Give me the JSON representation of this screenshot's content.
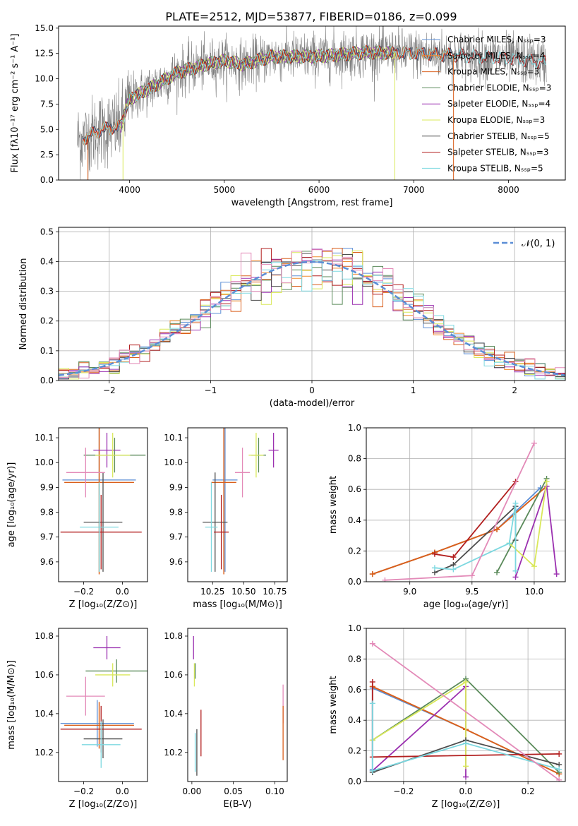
{
  "title": "PLATE=2512, MJD=53877, FIBERID=0186, z=0.099",
  "colors": {
    "c1": "#5b8ed6",
    "c2": "#ef8a2d",
    "c3": "#d95f1c",
    "c4": "#5a8a5a",
    "c5": "#9b30b0",
    "c6": "#d9e85a",
    "c7": "#4d4d4d",
    "c8": "#b21f1f",
    "c9": "#7dd8e0",
    "c10": "#e38ab8",
    "normal": "#5b8ed6",
    "spec": "#7f7f7f"
  },
  "legend_spectrum": [
    "Chabrier MILES, Nₛₛₚ=3",
    "Salpeter MILES, Nₛₛₚ=4",
    "Kroupa MILES, Nₛₛₚ=3",
    "Chabrier ELODIE, Nₛₛₚ=3",
    "Salpeter ELODIE, Nₛₛₚ=4",
    "Kroupa ELODIE, Nₛₛₚ=3",
    "Chabrier STELIB, Nₛₛₚ=5",
    "Salpeter STELIB, Nₛₛₚ=3",
    "Kroupa STELIB, Nₛₛₚ=5"
  ],
  "legend_normal": "𝒩(0, 1)",
  "chart_data": [
    {
      "type": "line",
      "xlabel": "wavelength [Angstrom, rest frame]",
      "ylabel": "Flux [fλ10⁻¹⁷ erg cm⁻² s⁻¹ A⁻¹]",
      "xlim": [
        3250,
        8600
      ],
      "ylim": [
        0,
        15.2
      ],
      "xticks": [
        4000,
        5000,
        6000,
        7000,
        8000
      ],
      "yticks": [
        0.0,
        2.5,
        5.0,
        7.5,
        10.0,
        12.5,
        15.0
      ],
      "continuum": [
        [
          3500,
          4.0
        ],
        [
          3700,
          5.0
        ],
        [
          3900,
          5.3
        ],
        [
          4000,
          8.0
        ],
        [
          4300,
          9.5
        ],
        [
          4500,
          10.6
        ],
        [
          4800,
          11.4
        ],
        [
          5000,
          11.8
        ],
        [
          5200,
          11.4
        ],
        [
          5500,
          12.2
        ],
        [
          6000,
          12.2
        ],
        [
          6500,
          12.6
        ],
        [
          7000,
          12.5
        ],
        [
          7500,
          12.3
        ],
        [
          8000,
          12.0
        ],
        [
          8400,
          11.6
        ]
      ],
      "series": [
        {
          "name": "data",
          "x_range": [
            3450,
            8400
          ],
          "noise": 1.2
        },
        {
          "name": "Chabrier MILES, Nₛₛₚ=3",
          "x_range": [
            3500,
            7400
          ]
        },
        {
          "name": "Salpeter MILES, Nₛₛₚ=4",
          "x_range": [
            3500,
            7400
          ]
        },
        {
          "name": "Kroupa MILES, Nₛₛₚ=3",
          "x_range": [
            3500,
            7400
          ]
        },
        {
          "name": "Chabrier ELODIE, Nₛₛₚ=3",
          "x_range": [
            3900,
            6800
          ]
        },
        {
          "name": "Salpeter ELODIE, Nₛₛₚ=4",
          "x_range": [
            3900,
            6800
          ]
        },
        {
          "name": "Kroupa ELODIE, Nₛₛₚ=3",
          "x_range": [
            3900,
            6800
          ]
        },
        {
          "name": "Chabrier STELIB, Nₛₛₚ=5",
          "x_range": [
            3500,
            8400
          ]
        },
        {
          "name": "Salpeter STELIB, Nₛₛₚ=3",
          "x_range": [
            3500,
            8400
          ]
        },
        {
          "name": "Kroupa STELIB, Nₛₛₚ=5",
          "x_range": [
            3500,
            8400
          ]
        }
      ]
    },
    {
      "type": "histogram",
      "xlabel": "(data-model)/error",
      "ylabel": "Normed distribution",
      "xlim": [
        -2.5,
        2.5
      ],
      "ylim": [
        0,
        0.515
      ],
      "xticks": [
        -2,
        -1,
        0,
        1,
        2
      ],
      "yticks": [
        0.0,
        0.1,
        0.2,
        0.3,
        0.4,
        0.5
      ],
      "bin_width": 0.1,
      "reference": "normal pdf, mean 0, sd 1"
    },
    {
      "type": "scatter",
      "xlabel": "Z [log₁₀(Z/Z⊙)]",
      "ylabel": "age  [log₁₀(age/yr)]",
      "xlim": [
        -0.33,
        0.13
      ],
      "ylim": [
        9.52,
        10.14
      ],
      "xticks": [
        -0.2,
        0.0
      ],
      "yticks": [
        9.6,
        9.7,
        9.8,
        9.9,
        10.0,
        10.1
      ],
      "points": [
        {
          "c": "c1",
          "x": -0.12,
          "y": 9.93,
          "xe": 0.19,
          "ye": 0.37
        },
        {
          "c": "c2",
          "x": -0.12,
          "y": 9.92,
          "xe": 0.18,
          "ye": 0.37
        },
        {
          "c": "c3",
          "x": -0.12,
          "y": 9.92,
          "xe": 0.18,
          "ye": 0.37
        },
        {
          "c": "c4",
          "x": -0.04,
          "y": 10.03,
          "xe": 0.16,
          "ye": 0.07
        },
        {
          "c": "c5",
          "x": -0.08,
          "y": 10.05,
          "xe": 0.07,
          "ye": 0.07
        },
        {
          "c": "c6",
          "x": -0.05,
          "y": 10.03,
          "xe": 0.09,
          "ye": 0.09
        },
        {
          "c": "c7",
          "x": -0.1,
          "y": 9.76,
          "xe": 0.1,
          "ye": 0.2
        },
        {
          "c": "c8",
          "x": -0.11,
          "y": 9.72,
          "xe": 0.21,
          "ye": 0.15
        },
        {
          "c": "c9",
          "x": -0.12,
          "y": 9.74,
          "xe": 0.1,
          "ye": 0.18
        },
        {
          "c": "c10",
          "x": -0.19,
          "y": 9.96,
          "xe": 0.1,
          "ye": 0.1
        }
      ]
    },
    {
      "type": "scatter",
      "xlabel": "mass [log₁₀(M/M⊙)]",
      "ylabel": "",
      "xlim": [
        10.05,
        10.85
      ],
      "ylim": [
        9.52,
        10.14
      ],
      "xticks": [
        10.25,
        10.5,
        10.75
      ],
      "yticks": [
        9.6,
        9.7,
        9.8,
        9.9,
        10.0,
        10.1
      ],
      "points": [
        {
          "c": "c1",
          "x": 10.35,
          "y": 9.93,
          "xe": 0.1,
          "ye": 0.37
        },
        {
          "c": "c2",
          "x": 10.34,
          "y": 9.92,
          "xe": 0.1,
          "ye": 0.37
        },
        {
          "c": "c3",
          "x": 10.34,
          "y": 9.92,
          "xe": 0.1,
          "ye": 0.37
        },
        {
          "c": "c4",
          "x": 10.62,
          "y": 10.03,
          "xe": 0.06,
          "ye": 0.07
        },
        {
          "c": "c5",
          "x": 10.74,
          "y": 10.05,
          "xe": 0.04,
          "ye": 0.07
        },
        {
          "c": "c6",
          "x": 10.6,
          "y": 10.03,
          "xe": 0.06,
          "ye": 0.09
        },
        {
          "c": "c7",
          "x": 10.27,
          "y": 9.76,
          "xe": 0.1,
          "ye": 0.2
        },
        {
          "c": "c8",
          "x": 10.32,
          "y": 9.72,
          "xe": 0.06,
          "ye": 0.15
        },
        {
          "c": "c9",
          "x": 10.24,
          "y": 9.74,
          "xe": 0.05,
          "ye": 0.18
        },
        {
          "c": "c10",
          "x": 10.49,
          "y": 9.96,
          "xe": 0.06,
          "ye": 0.1
        }
      ]
    },
    {
      "type": "line",
      "xlabel": "age  [log₁₀(age/yr)]",
      "ylabel": "mass weight",
      "xlim": [
        8.65,
        10.25
      ],
      "ylim": [
        0,
        1.0
      ],
      "xticks": [
        9.0,
        9.5,
        10.0
      ],
      "yticks": [
        0.0,
        0.2,
        0.4,
        0.6,
        0.8,
        1.0
      ],
      "series": [
        {
          "c": "c1",
          "x": [
            8.7,
            9.2,
            9.7,
            10.05
          ],
          "y": [
            0.05,
            0.19,
            0.34,
            0.61
          ]
        },
        {
          "c": "c2",
          "x": [
            8.7,
            9.2,
            9.7,
            10.1
          ],
          "y": [
            0.05,
            0.19,
            0.34,
            0.62
          ]
        },
        {
          "c": "c3",
          "x": [
            8.7,
            9.2,
            9.7,
            10.1
          ],
          "y": [
            0.05,
            0.19,
            0.34,
            0.62
          ]
        },
        {
          "c": "c4",
          "x": [
            9.7,
            10.1
          ],
          "y": [
            0.06,
            0.67
          ]
        },
        {
          "c": "c5",
          "x": [
            9.85,
            10.1,
            10.18
          ],
          "y": [
            0.03,
            0.62,
            0.05
          ]
        },
        {
          "c": "c6",
          "x": [
            9.8,
            10.0,
            10.1
          ],
          "y": [
            0.25,
            0.1,
            0.65
          ]
        },
        {
          "c": "c7",
          "x": [
            9.2,
            9.35,
            9.85,
            9.85
          ],
          "y": [
            0.06,
            0.11,
            0.49,
            0.27
          ]
        },
        {
          "c": "c8",
          "x": [
            9.2,
            9.35,
            9.85
          ],
          "y": [
            0.18,
            0.16,
            0.65
          ]
        },
        {
          "c": "c9",
          "x": [
            9.2,
            9.35,
            9.8,
            9.85,
            9.85
          ],
          "y": [
            0.09,
            0.08,
            0.25,
            0.51,
            0.07
          ]
        },
        {
          "c": "c10",
          "x": [
            8.8,
            9.5,
            10.0
          ],
          "y": [
            0.01,
            0.04,
            0.9
          ]
        }
      ]
    },
    {
      "type": "scatter",
      "xlabel": "Z [log₁₀(Z/Z⊙)]",
      "ylabel": "mass [log₁₀(M/M⊙)]",
      "xlim": [
        -0.33,
        0.13
      ],
      "ylim": [
        10.05,
        10.84
      ],
      "xticks": [
        -0.2,
        0.0
      ],
      "yticks": [
        10.2,
        10.4,
        10.6,
        10.8
      ],
      "points": [
        {
          "c": "c1",
          "x": -0.13,
          "y": 10.35,
          "xe": 0.19,
          "ye": 0.12
        },
        {
          "c": "c2",
          "x": -0.12,
          "y": 10.34,
          "xe": 0.18,
          "ye": 0.12
        },
        {
          "c": "c3",
          "x": -0.12,
          "y": 10.34,
          "xe": 0.18,
          "ye": 0.12
        },
        {
          "c": "c4",
          "x": -0.03,
          "y": 10.62,
          "xe": 0.16,
          "ye": 0.06
        },
        {
          "c": "c5",
          "x": -0.08,
          "y": 10.74,
          "xe": 0.07,
          "ye": 0.06
        },
        {
          "c": "c6",
          "x": -0.05,
          "y": 10.6,
          "xe": 0.09,
          "ye": 0.06
        },
        {
          "c": "c7",
          "x": -0.1,
          "y": 10.27,
          "xe": 0.1,
          "ye": 0.1
        },
        {
          "c": "c8",
          "x": -0.11,
          "y": 10.32,
          "xe": 0.21,
          "ye": 0.12
        },
        {
          "c": "c9",
          "x": -0.11,
          "y": 10.24,
          "xe": 0.1,
          "ye": 0.12
        },
        {
          "c": "c10",
          "x": -0.19,
          "y": 10.49,
          "xe": 0.1,
          "ye": 0.1
        }
      ]
    },
    {
      "type": "scatter",
      "xlabel": "E(B-V)",
      "ylabel": "",
      "xlim": [
        -0.005,
        0.115
      ],
      "ylim": [
        10.05,
        10.84
      ],
      "xticks": [
        0.0,
        0.05,
        0.1
      ],
      "yticks": [
        10.2,
        10.4,
        10.6,
        10.8
      ],
      "points": [
        {
          "c": "c5",
          "x": 0.002,
          "y": 10.74,
          "xe": 0.0,
          "ye": 0.06
        },
        {
          "c": "c6",
          "x": 0.003,
          "y": 10.6,
          "xe": 0.0,
          "ye": 0.06
        },
        {
          "c": "c4",
          "x": 0.004,
          "y": 10.62,
          "xe": 0.0,
          "ye": 0.04
        },
        {
          "c": "c7",
          "x": 0.006,
          "y": 10.2,
          "xe": 0.0,
          "ye": 0.12
        },
        {
          "c": "c9",
          "x": 0.004,
          "y": 10.2,
          "xe": 0.0,
          "ye": 0.1
        },
        {
          "c": "c8",
          "x": 0.011,
          "y": 10.3,
          "xe": 0.0,
          "ye": 0.12
        },
        {
          "c": "c10",
          "x": 0.11,
          "y": 10.45,
          "xe": 0.0,
          "ye": 0.1
        },
        {
          "c": "c3",
          "x": 0.11,
          "y": 10.3,
          "xe": 0.0,
          "ye": 0.14
        }
      ]
    },
    {
      "type": "line",
      "xlabel": "Z [log₁₀(Z/Z⊙)]",
      "ylabel": "mass weight",
      "xlim": [
        -0.32,
        0.32
      ],
      "ylim": [
        0,
        1.0
      ],
      "xticks": [
        -0.2,
        0.0,
        0.2
      ],
      "yticks": [
        0.0,
        0.2,
        0.4,
        0.6,
        0.8,
        1.0
      ],
      "series": [
        {
          "c": "c1",
          "x": [
            -0.3,
            -0.3,
            0.0,
            0.3
          ],
          "y": [
            0.08,
            0.61,
            0.34,
            0.05
          ]
        },
        {
          "c": "c2",
          "x": [
            -0.3,
            0.0,
            0.3
          ],
          "y": [
            0.62,
            0.34,
            0.05
          ]
        },
        {
          "c": "c3",
          "x": [
            -0.3,
            0.0,
            0.3
          ],
          "y": [
            0.62,
            0.34,
            0.05
          ]
        },
        {
          "c": "c4",
          "x": [
            -0.3,
            0.0,
            0.3
          ],
          "y": [
            0.27,
            0.67,
            0.06
          ]
        },
        {
          "c": "c5",
          "x": [
            -0.3,
            0.0,
            0.0
          ],
          "y": [
            0.07,
            0.62,
            0.03
          ]
        },
        {
          "c": "c6",
          "x": [
            -0.3,
            0.0,
            0.0
          ],
          "y": [
            0.27,
            0.65,
            0.1
          ]
        },
        {
          "c": "c7",
          "x": [
            -0.3,
            0.0,
            0.3
          ],
          "y": [
            0.06,
            0.27,
            0.11
          ]
        },
        {
          "c": "c8",
          "x": [
            -0.3,
            -0.3,
            0.3
          ],
          "y": [
            0.65,
            0.16,
            0.18
          ]
        },
        {
          "c": "c9",
          "x": [
            -0.3,
            -0.3,
            0.0,
            0.3
          ],
          "y": [
            0.51,
            0.07,
            0.25,
            0.08
          ]
        },
        {
          "c": "c10",
          "x": [
            -0.3,
            0.3
          ],
          "y": [
            0.9,
            0.01
          ]
        }
      ]
    }
  ]
}
